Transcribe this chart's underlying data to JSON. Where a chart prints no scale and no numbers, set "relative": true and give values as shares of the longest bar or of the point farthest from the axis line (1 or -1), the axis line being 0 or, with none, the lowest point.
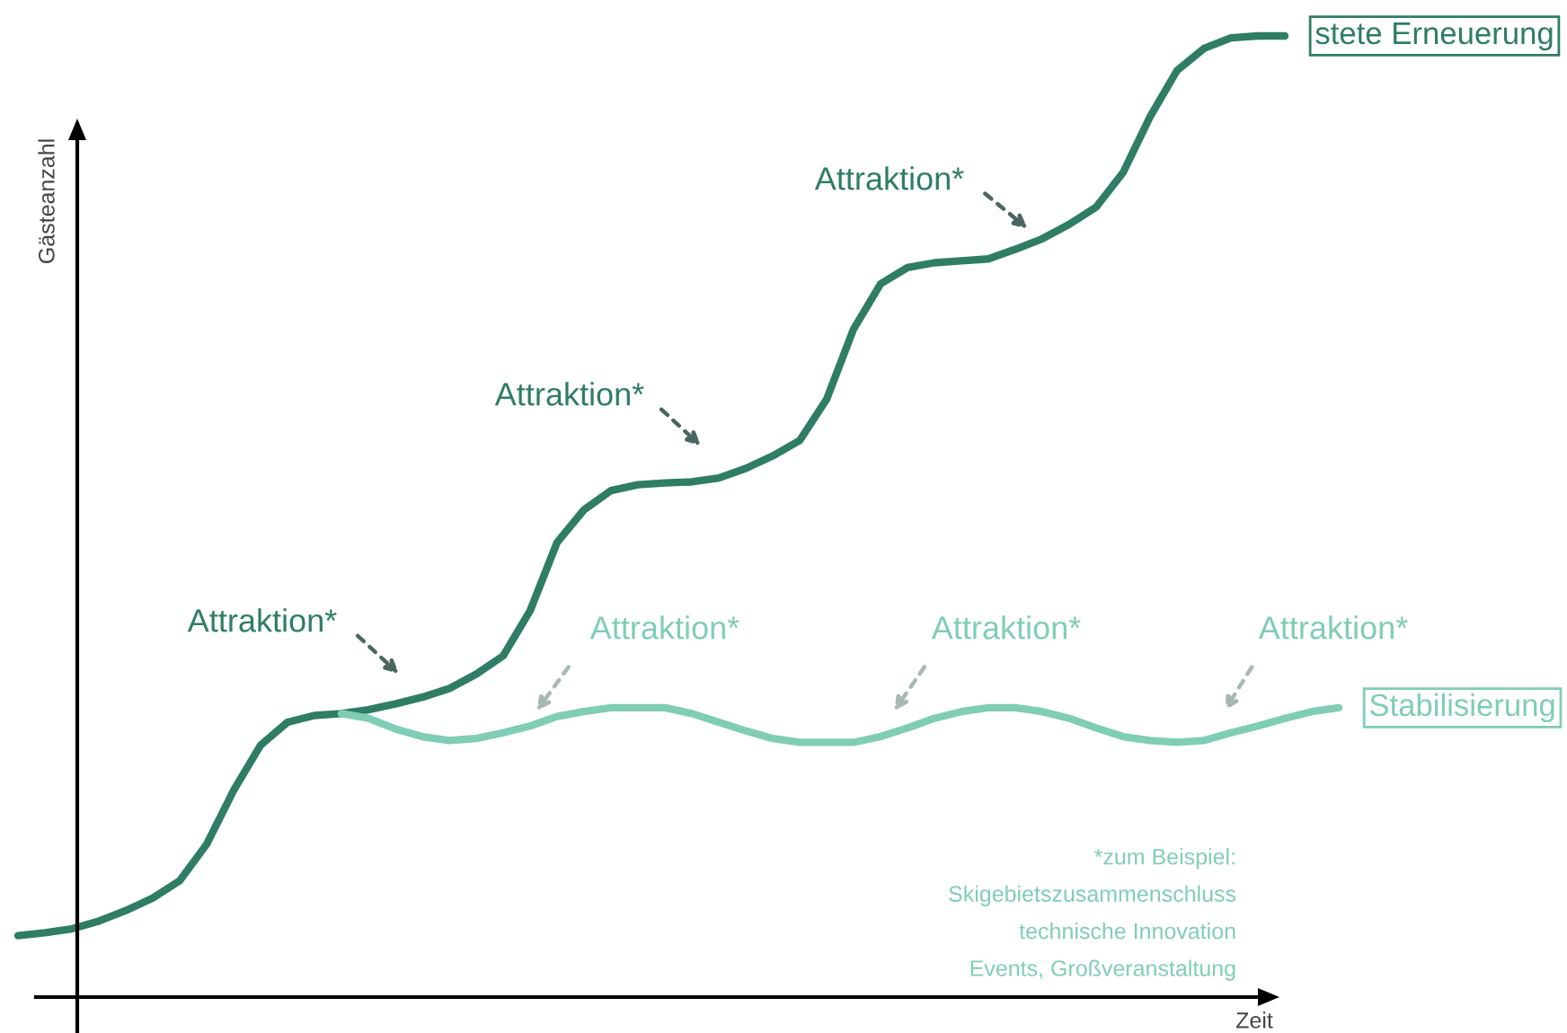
{
  "chart_data": {
    "type": "line",
    "relative": true,
    "xlabel": "Zeit",
    "ylabel": "Gästeanzahl",
    "categories": [
      null,
      null,
      null,
      null,
      null,
      null,
      null,
      null,
      null,
      null,
      null,
      null,
      null,
      null,
      null,
      null,
      null,
      null,
      null,
      null,
      null,
      null,
      null,
      null,
      null,
      null,
      null,
      null,
      null,
      null,
      null,
      null,
      null,
      null,
      null,
      null,
      null,
      null,
      null,
      null,
      null,
      null,
      null,
      null,
      null,
      null,
      null,
      null,
      null,
      null
    ],
    "series": [
      {
        "name": "stete Erneuerung",
        "color": "#2e7d64",
        "values": [
          0.064,
          0.067,
          0.071,
          0.079,
          0.09,
          0.103,
          0.121,
          0.159,
          0.215,
          0.262,
          0.286,
          0.293,
          0.295,
          0.299,
          0.305,
          0.312,
          0.321,
          0.336,
          0.355,
          0.402,
          0.473,
          0.507,
          0.527,
          0.533,
          0.535,
          0.536,
          0.54,
          0.55,
          0.563,
          0.579,
          0.622,
          0.695,
          0.742,
          0.759,
          0.764,
          0.766,
          0.768,
          0.778,
          0.789,
          0.804,
          0.822,
          0.858,
          0.916,
          0.964,
          0.987,
          0.998,
          1,
          1,
          null,
          null
        ]
      },
      {
        "name": "Stabilisierung",
        "color": "#7fcdb5",
        "values": [
          null,
          null,
          null,
          null,
          null,
          null,
          null,
          null,
          null,
          null,
          null,
          null,
          0.295,
          0.29,
          0.279,
          0.271,
          0.267,
          0.269,
          0.275,
          0.282,
          0.292,
          0.297,
          0.301,
          0.301,
          0.301,
          0.295,
          0.286,
          0.277,
          0.269,
          0.265,
          0.265,
          0.265,
          0.271,
          0.28,
          0.29,
          0.297,
          0.301,
          0.301,
          0.297,
          0.29,
          0.28,
          0.271,
          0.267,
          0.265,
          0.267,
          0.275,
          0.282,
          0.29,
          0.297,
          0.301
        ]
      }
    ],
    "annotations": [
      "Attraktion*",
      "Attraktion*",
      "Attraktion*",
      "Attraktion*",
      "Attraktion*",
      "Attraktion*",
      "*zum Beispiel:\nSkigebietszusammenschluss\ntechnische Innovation\nEvents, Großveranstaltung"
    ]
  }
}
